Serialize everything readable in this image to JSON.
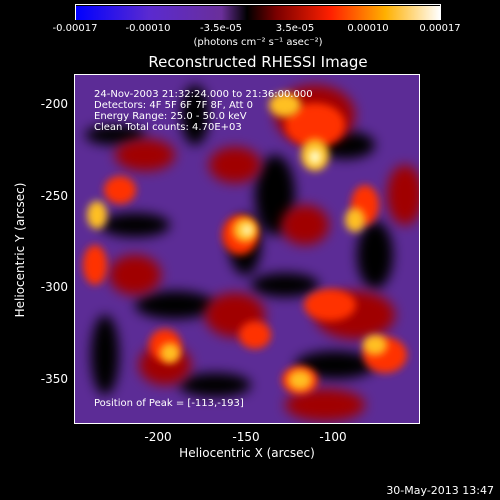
{
  "colorbar": {
    "ticks": [
      "-0.00017",
      "-0.00010",
      "-3.5e-05",
      "3.5e-05",
      "0.00010",
      "0.00017"
    ],
    "units": "(photons cm⁻² s⁻¹ asec⁻²)"
  },
  "title": "Reconstructed RHESSI Image",
  "info": {
    "line1": "24-Nov-2003 21:32:24.000 to 21:36:00.000",
    "line2": "Detectors: 4F 5F 6F 7F 8F, Att 0",
    "line3": "Energy Range: 25.0 - 50.0 keV",
    "line4": "Clean     Total counts: 4.70E+03",
    "peak": "Position of Peak = [-113,-193]"
  },
  "axes": {
    "xlabel": "Heliocentric X (arcsec)",
    "ylabel": "Heliocentric Y (arcsec)",
    "xticks": [
      "-200",
      "-150",
      "-100"
    ],
    "yticks": [
      "-200",
      "-250",
      "-300",
      "-350"
    ]
  },
  "footer": {
    "date": "30-May-2013 13:47"
  },
  "colors": {
    "background": "#000000",
    "foreground": "#ffffff"
  }
}
